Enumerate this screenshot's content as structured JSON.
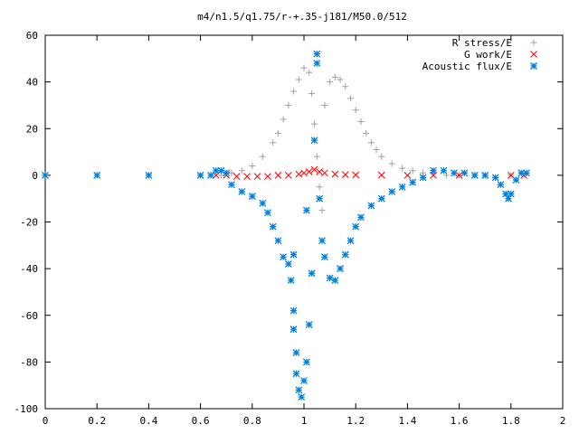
{
  "chart_data": {
    "type": "scatter",
    "title": "m4/n1.5/q1.75/r-+.35-j181/M50.0/512",
    "xlabel": "",
    "ylabel": "",
    "xlim": [
      0,
      2
    ],
    "ylim": [
      -100,
      60
    ],
    "x_ticks": [
      "0",
      "0.2",
      "0.4",
      "0.6",
      "0.8",
      "1",
      "1.2",
      "1.4",
      "1.6",
      "1.8",
      "2"
    ],
    "y_ticks": [
      "60",
      "40",
      "20",
      "0",
      "-20",
      "-40",
      "-60",
      "-80",
      "-100"
    ],
    "grid": false,
    "legend_position": "top-right",
    "series": [
      {
        "name": "R stress/E",
        "marker": "plus",
        "color": "#a0a0a0",
        "points": [
          [
            0.68,
            0
          ],
          [
            0.72,
            1
          ],
          [
            0.76,
            2
          ],
          [
            0.8,
            4
          ],
          [
            0.84,
            8
          ],
          [
            0.88,
            14
          ],
          [
            0.9,
            18
          ],
          [
            0.92,
            24
          ],
          [
            0.94,
            30
          ],
          [
            0.96,
            36
          ],
          [
            0.98,
            41
          ],
          [
            1.0,
            46
          ],
          [
            1.02,
            44
          ],
          [
            1.03,
            35
          ],
          [
            1.04,
            22
          ],
          [
            1.05,
            8
          ],
          [
            1.06,
            -5
          ],
          [
            1.07,
            -15
          ],
          [
            1.08,
            30
          ],
          [
            1.1,
            40
          ],
          [
            1.12,
            42
          ],
          [
            1.14,
            41
          ],
          [
            1.16,
            38
          ],
          [
            1.18,
            33
          ],
          [
            1.2,
            28
          ],
          [
            1.22,
            23
          ],
          [
            1.24,
            18
          ],
          [
            1.26,
            14
          ],
          [
            1.28,
            11
          ],
          [
            1.3,
            8
          ],
          [
            1.34,
            5
          ],
          [
            1.38,
            3
          ],
          [
            1.42,
            2
          ],
          [
            1.46,
            1
          ],
          [
            1.5,
            1
          ],
          [
            1.55,
            0
          ],
          [
            1.6,
            0
          ],
          [
            1.7,
            0
          ],
          [
            1.8,
            0
          ],
          [
            1.85,
            0
          ]
        ]
      },
      {
        "name": "G work/E",
        "marker": "cross",
        "color": "#ff0000",
        "points": [
          [
            0.66,
            0
          ],
          [
            0.7,
            0
          ],
          [
            0.74,
            -0.5
          ],
          [
            0.78,
            -0.5
          ],
          [
            0.82,
            -0.5
          ],
          [
            0.86,
            -0.5
          ],
          [
            0.9,
            0
          ],
          [
            0.94,
            0
          ],
          [
            0.98,
            0.5
          ],
          [
            1.0,
            1
          ],
          [
            1.02,
            1.5
          ],
          [
            1.04,
            2.5
          ],
          [
            1.06,
            1.5
          ],
          [
            1.08,
            1
          ],
          [
            1.12,
            0.5
          ],
          [
            1.16,
            0.3
          ],
          [
            1.2,
            0.2
          ],
          [
            1.3,
            0.1
          ],
          [
            1.4,
            0
          ],
          [
            1.5,
            0
          ],
          [
            1.6,
            0
          ],
          [
            1.7,
            0
          ],
          [
            1.8,
            0
          ],
          [
            1.85,
            0
          ]
        ]
      },
      {
        "name": "Acoustic flux/E",
        "marker": "star",
        "color": "#0080e0",
        "points": [
          [
            0,
            0
          ],
          [
            0.2,
            0
          ],
          [
            0.4,
            0
          ],
          [
            0.6,
            0
          ],
          [
            0.64,
            0
          ],
          [
            0.66,
            2
          ],
          [
            0.68,
            2
          ],
          [
            0.7,
            1
          ],
          [
            0.72,
            -4
          ],
          [
            0.76,
            -7
          ],
          [
            0.8,
            -9
          ],
          [
            0.84,
            -12
          ],
          [
            0.86,
            -16
          ],
          [
            0.88,
            -22
          ],
          [
            0.9,
            -28
          ],
          [
            0.92,
            -35
          ],
          [
            0.94,
            -38
          ],
          [
            0.96,
            -34
          ],
          [
            0.95,
            -45
          ],
          [
            0.96,
            -58
          ],
          [
            0.96,
            -66
          ],
          [
            0.97,
            -76
          ],
          [
            0.97,
            -85
          ],
          [
            0.98,
            -92
          ],
          [
            0.99,
            -95
          ],
          [
            1.0,
            -88
          ],
          [
            1.01,
            -80
          ],
          [
            1.02,
            -64
          ],
          [
            1.03,
            -42
          ],
          [
            1.01,
            -15
          ],
          [
            1.04,
            15
          ],
          [
            1.05,
            48
          ],
          [
            1.05,
            52
          ],
          [
            1.06,
            -10
          ],
          [
            1.07,
            -28
          ],
          [
            1.08,
            -35
          ],
          [
            1.1,
            -44
          ],
          [
            1.12,
            -45
          ],
          [
            1.14,
            -40
          ],
          [
            1.16,
            -34
          ],
          [
            1.18,
            -28
          ],
          [
            1.2,
            -22
          ],
          [
            1.22,
            -18
          ],
          [
            1.26,
            -13
          ],
          [
            1.3,
            -10
          ],
          [
            1.34,
            -7
          ],
          [
            1.38,
            -5
          ],
          [
            1.42,
            -3
          ],
          [
            1.46,
            -1
          ],
          [
            1.5,
            2
          ],
          [
            1.54,
            2
          ],
          [
            1.58,
            1
          ],
          [
            1.62,
            1
          ],
          [
            1.66,
            0
          ],
          [
            1.7,
            0
          ],
          [
            1.74,
            -1
          ],
          [
            1.76,
            -4
          ],
          [
            1.78,
            -8
          ],
          [
            1.79,
            -10
          ],
          [
            1.8,
            -8
          ],
          [
            1.82,
            -2
          ],
          [
            1.84,
            1
          ],
          [
            1.86,
            1
          ]
        ]
      }
    ]
  }
}
